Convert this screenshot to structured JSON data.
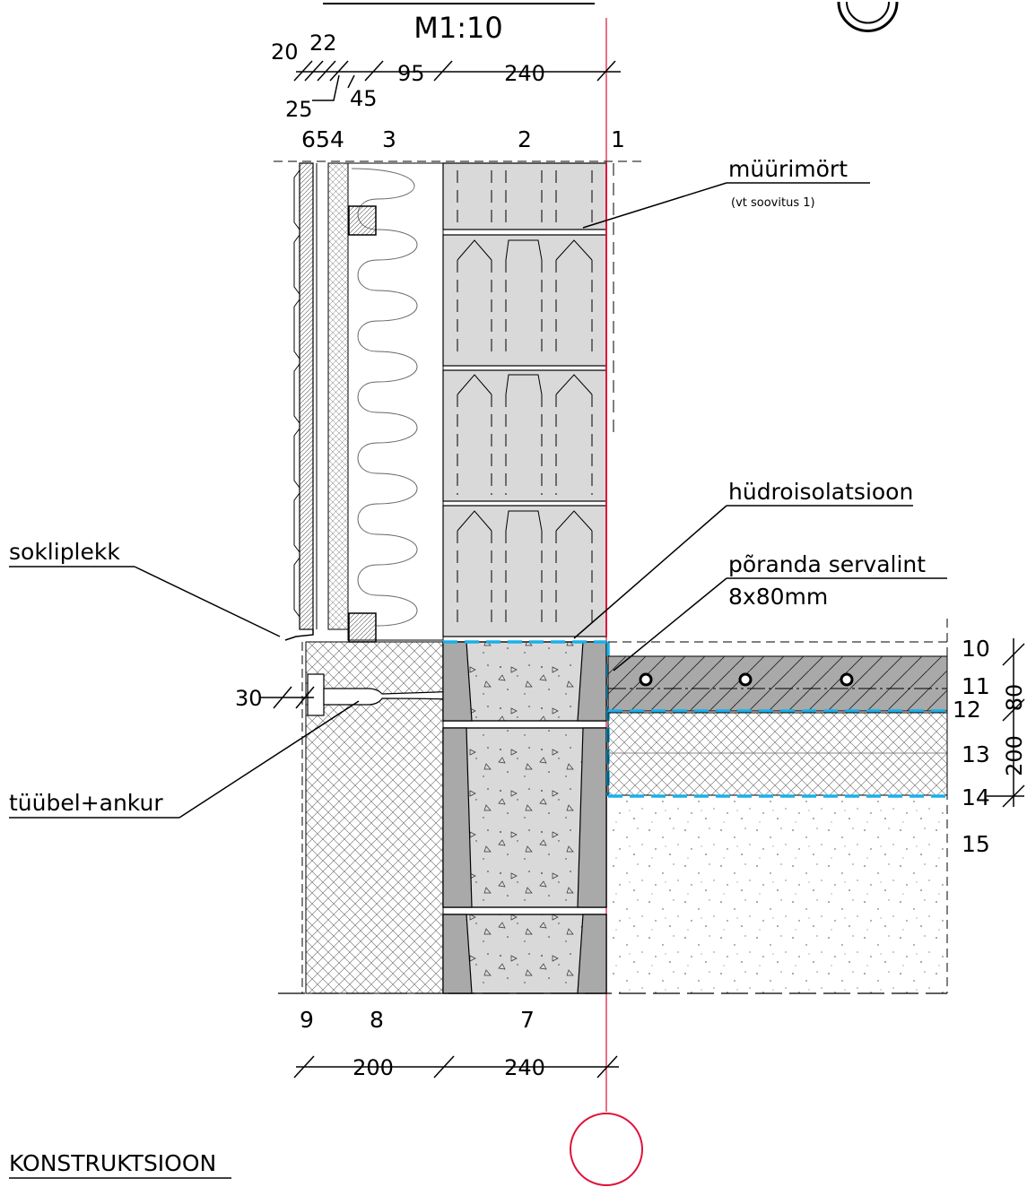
{
  "scale": "M1:10",
  "top_dimensions": {
    "values": [
      "20",
      "22",
      "25",
      "45",
      "95",
      "240"
    ]
  },
  "layer_numbers_top": [
    "6",
    "5",
    "4",
    "3",
    "2",
    "1"
  ],
  "layer_numbers_bottom": [
    "9",
    "8",
    "7"
  ],
  "layer_numbers_right": [
    "10",
    "11",
    "12",
    "13",
    "14",
    "15"
  ],
  "right_dimensions": [
    "80",
    "200"
  ],
  "bottom_dimensions": [
    "200",
    "240"
  ],
  "left_dimension": "30",
  "callouts": {
    "mortar": "müürimört",
    "mortar_note": "(vt soovitus 1)",
    "waterproofing": "hüdroisolatsioon",
    "floor_edge_tape": "põranda servalint",
    "floor_edge_tape_size": "8x80mm",
    "plinth_flashing": "sokliplekk",
    "dowel_anchor": "tüübel+ankur"
  },
  "footer_title": "KONSTRUKTSIOON",
  "colors": {
    "red_axis": "#e0103a",
    "waterproofing_blue": "#1ab0e8",
    "block_fill": "#d9d9d9",
    "dark_gray": "#a9a9a9"
  }
}
